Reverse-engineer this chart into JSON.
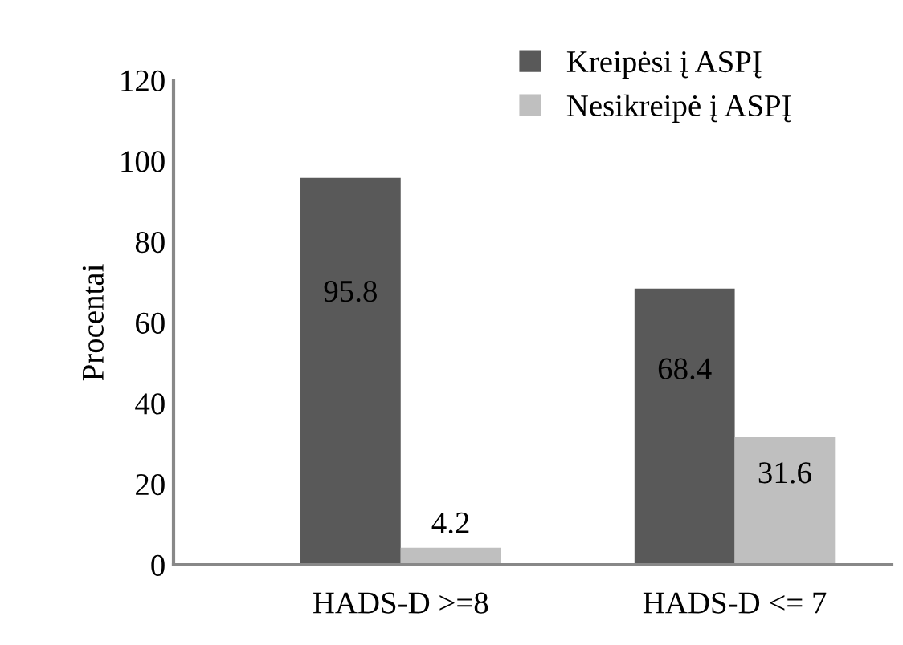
{
  "chart_data": {
    "type": "bar",
    "ylabel": "Procentai",
    "categories": [
      "HADS-D >=8",
      "HADS-D <= 7"
    ],
    "series": [
      {
        "name": "Kreipėsi į ASPĮ",
        "color": "#595959",
        "values": [
          95.8,
          68.4
        ]
      },
      {
        "name": "Nesikreipė į ASPĮ",
        "color": "#bfbfbf",
        "values": [
          4.2,
          31.6
        ]
      }
    ],
    "ylim": [
      0,
      120
    ],
    "yticks": [
      0,
      20,
      40,
      60,
      80,
      100,
      120
    ],
    "grid": false,
    "legend": "top right",
    "data_labels": true
  }
}
